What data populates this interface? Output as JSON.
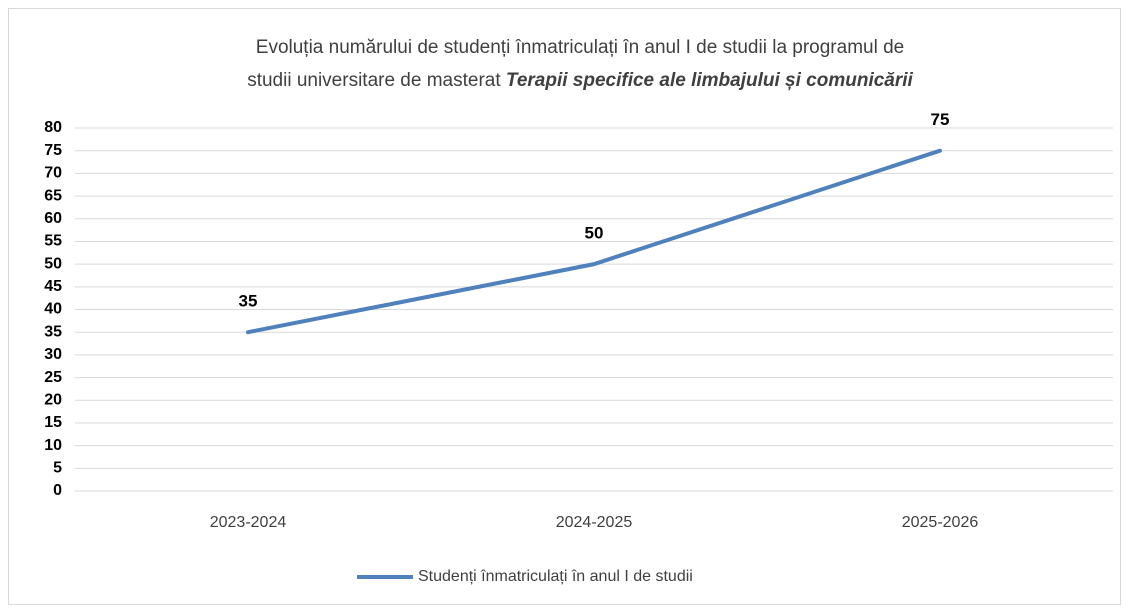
{
  "chart_data": {
    "type": "line",
    "title_lines": [
      "Evoluția numărului de studenți înmatriculați în anul I de studii la programul de",
      "studii universitare de masterat"
    ],
    "title_emphasis": "Terapii specifice ale limbajului și comunicării",
    "categories": [
      "2023-2024",
      "2024-2025",
      "2025-2026"
    ],
    "series": [
      {
        "name": "Studenți înmatriculați în anul I de studii",
        "color": "#4f81bd",
        "values": [
          35,
          50,
          75
        ]
      }
    ],
    "ylim": [
      0,
      80
    ],
    "yticks": [
      0,
      5,
      10,
      15,
      20,
      25,
      30,
      35,
      40,
      45,
      50,
      55,
      60,
      65,
      70,
      75,
      80
    ],
    "grid": true,
    "legend": "bottom",
    "data_labels": true
  }
}
